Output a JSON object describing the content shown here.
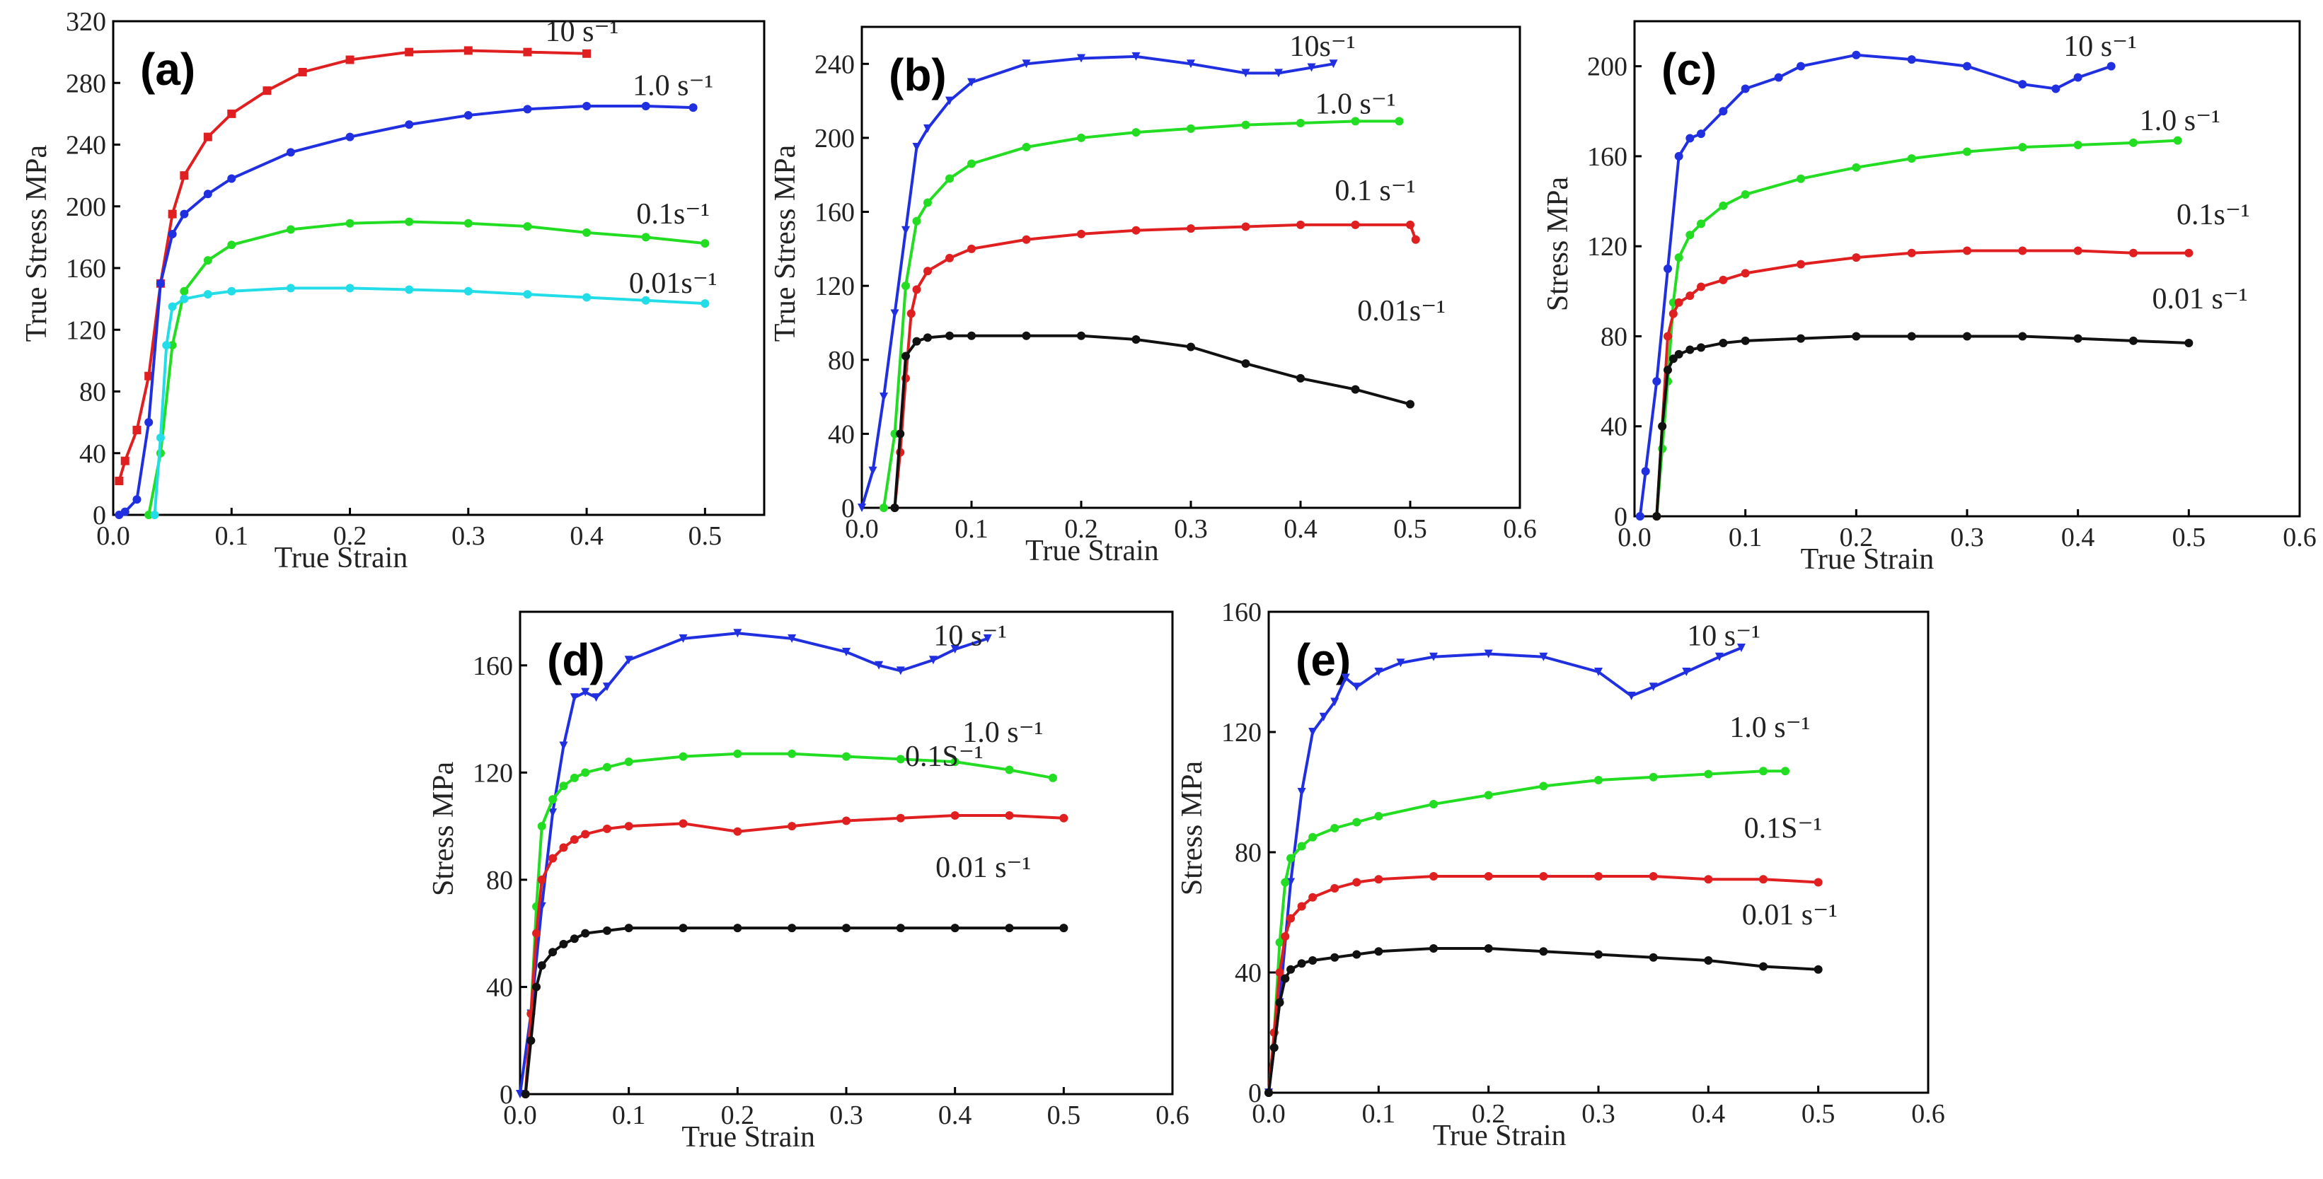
{
  "chart_data": [
    {
      "type": "scatter",
      "panel_label": "(a)",
      "xlabel": "True Strain",
      "ylabel": "True Stress  MPa",
      "xlim": [
        0,
        0.55
      ],
      "ylim": [
        0,
        320
      ],
      "xticks": [
        0.0,
        0.1,
        0.2,
        0.3,
        0.4,
        0.5
      ],
      "xtick_labels": [
        "0.0",
        "0.1",
        "0.2",
        "0.3",
        "0.4",
        "0.5"
      ],
      "yticks": [
        0,
        40,
        80,
        120,
        160,
        200,
        240,
        280,
        320
      ],
      "ytick_labels": [
        "0",
        "40",
        "80",
        "120",
        "160",
        "200",
        "240",
        "280",
        "320"
      ],
      "series": [
        {
          "name": "10 s⁻¹",
          "color": "#e02020",
          "marker": "square",
          "x": [
            0.005,
            0.01,
            0.02,
            0.03,
            0.04,
            0.05,
            0.06,
            0.08,
            0.1,
            0.13,
            0.16,
            0.2,
            0.25,
            0.3,
            0.35,
            0.4
          ],
          "y": [
            22,
            35,
            55,
            90,
            150,
            195,
            220,
            245,
            260,
            275,
            287,
            295,
            300,
            301,
            300,
            299
          ]
        },
        {
          "name": "1.0 s⁻¹",
          "color": "#2030e0",
          "marker": "circle",
          "x": [
            0.005,
            0.01,
            0.02,
            0.03,
            0.04,
            0.05,
            0.06,
            0.08,
            0.1,
            0.15,
            0.2,
            0.25,
            0.3,
            0.35,
            0.4,
            0.45,
            0.49
          ],
          "y": [
            0,
            2,
            10,
            60,
            150,
            182,
            195,
            208,
            218,
            235,
            245,
            253,
            259,
            263,
            265,
            265,
            264
          ]
        },
        {
          "name": "0.1s⁻¹",
          "color": "#22dd22",
          "marker": "circle",
          "x": [
            0.03,
            0.04,
            0.05,
            0.06,
            0.08,
            0.1,
            0.15,
            0.2,
            0.25,
            0.3,
            0.35,
            0.4,
            0.45,
            0.5
          ],
          "y": [
            0,
            40,
            110,
            145,
            165,
            175,
            185,
            189,
            190,
            189,
            187,
            183,
            180,
            176
          ]
        },
        {
          "name": "0.01s⁻¹",
          "color": "#22dde8",
          "marker": "circle",
          "x": [
            0.035,
            0.04,
            0.045,
            0.05,
            0.06,
            0.08,
            0.1,
            0.15,
            0.2,
            0.25,
            0.3,
            0.35,
            0.4,
            0.45,
            0.5
          ],
          "y": [
            0,
            50,
            110,
            135,
            140,
            143,
            145,
            147,
            147,
            146,
            145,
            143,
            141,
            139,
            137
          ]
        }
      ]
    },
    {
      "type": "scatter",
      "panel_label": "(b)",
      "xlabel": "True Strain",
      "ylabel": "True Stress  MPa",
      "xlim": [
        0,
        0.6
      ],
      "ylim": [
        0,
        260
      ],
      "xticks": [
        0.0,
        0.1,
        0.2,
        0.3,
        0.4,
        0.5,
        0.6
      ],
      "xtick_labels": [
        "0.0",
        "0.1",
        "0.2",
        "0.3",
        "0.4",
        "0.5",
        "0.6"
      ],
      "yticks": [
        0,
        40,
        80,
        120,
        160,
        200,
        240
      ],
      "ytick_labels": [
        "0",
        "40",
        "80",
        "120",
        "160",
        "200",
        "240"
      ],
      "series": [
        {
          "name": "10s⁻¹",
          "color": "#2030e0",
          "marker": "triangle-down",
          "x": [
            0.0,
            0.01,
            0.02,
            0.03,
            0.04,
            0.05,
            0.06,
            0.08,
            0.1,
            0.15,
            0.2,
            0.25,
            0.3,
            0.35,
            0.38,
            0.41,
            0.43
          ],
          "y": [
            0,
            20,
            60,
            105,
            150,
            195,
            205,
            220,
            230,
            240,
            243,
            244,
            240,
            235,
            235,
            238,
            240
          ]
        },
        {
          "name": "1.0 s⁻¹",
          "color": "#22dd22",
          "marker": "circle",
          "x": [
            0.02,
            0.03,
            0.04,
            0.05,
            0.06,
            0.08,
            0.1,
            0.15,
            0.2,
            0.25,
            0.3,
            0.35,
            0.4,
            0.45,
            0.49
          ],
          "y": [
            0,
            40,
            120,
            155,
            165,
            178,
            186,
            195,
            200,
            203,
            205,
            207,
            208,
            209,
            209
          ]
        },
        {
          "name": "0.1 s⁻¹",
          "color": "#e02020",
          "marker": "circle",
          "x": [
            0.03,
            0.035,
            0.04,
            0.045,
            0.05,
            0.06,
            0.08,
            0.1,
            0.15,
            0.2,
            0.25,
            0.3,
            0.35,
            0.4,
            0.45,
            0.5,
            0.505
          ],
          "y": [
            0,
            30,
            70,
            105,
            118,
            128,
            135,
            140,
            145,
            148,
            150,
            151,
            152,
            153,
            153,
            153,
            145
          ]
        },
        {
          "name": "0.01s⁻¹",
          "color": "#111111",
          "marker": "circle",
          "x": [
            0.03,
            0.035,
            0.04,
            0.05,
            0.06,
            0.08,
            0.1,
            0.15,
            0.2,
            0.25,
            0.3,
            0.35,
            0.4,
            0.45,
            0.5
          ],
          "y": [
            0,
            40,
            82,
            90,
            92,
            93,
            93,
            93,
            93,
            91,
            87,
            78,
            70,
            64,
            56
          ]
        }
      ]
    },
    {
      "type": "scatter",
      "panel_label": "(c)",
      "xlabel": "True Strain",
      "ylabel": "Stress  MPa",
      "xlim": [
        0,
        0.6
      ],
      "ylim": [
        0,
        220
      ],
      "xticks": [
        0.0,
        0.1,
        0.2,
        0.3,
        0.4,
        0.5,
        0.6
      ],
      "xtick_labels": [
        "0.0",
        "0.1",
        "0.2",
        "0.3",
        "0.4",
        "0.5",
        "0.6"
      ],
      "yticks": [
        0,
        40,
        80,
        120,
        160,
        200
      ],
      "ytick_labels": [
        "0",
        "40",
        "80",
        "120",
        "160",
        "200"
      ],
      "series": [
        {
          "name": "10 s⁻¹",
          "color": "#2030e0",
          "marker": "circle",
          "x": [
            0.005,
            0.01,
            0.02,
            0.03,
            0.04,
            0.05,
            0.06,
            0.08,
            0.1,
            0.13,
            0.15,
            0.2,
            0.25,
            0.3,
            0.35,
            0.38,
            0.4,
            0.43
          ],
          "y": [
            0,
            20,
            60,
            110,
            160,
            168,
            170,
            180,
            190,
            195,
            200,
            205,
            203,
            200,
            192,
            190,
            195,
            200
          ]
        },
        {
          "name": "1.0 s⁻¹",
          "color": "#22dd22",
          "marker": "circle",
          "x": [
            0.02,
            0.025,
            0.03,
            0.035,
            0.04,
            0.05,
            0.06,
            0.08,
            0.1,
            0.15,
            0.2,
            0.25,
            0.3,
            0.35,
            0.4,
            0.45,
            0.49
          ],
          "y": [
            0,
            30,
            60,
            95,
            115,
            125,
            130,
            138,
            143,
            150,
            155,
            159,
            162,
            164,
            165,
            166,
            167
          ]
        },
        {
          "name": "0.1s⁻¹",
          "color": "#e02020",
          "marker": "circle",
          "x": [
            0.02,
            0.025,
            0.03,
            0.035,
            0.04,
            0.05,
            0.06,
            0.08,
            0.1,
            0.15,
            0.2,
            0.25,
            0.3,
            0.35,
            0.4,
            0.45,
            0.5
          ],
          "y": [
            0,
            40,
            80,
            90,
            95,
            98,
            102,
            105,
            108,
            112,
            115,
            117,
            118,
            118,
            118,
            117,
            117
          ]
        },
        {
          "name": "0.01 s⁻¹",
          "color": "#111111",
          "marker": "circle",
          "x": [
            0.02,
            0.025,
            0.03,
            0.035,
            0.04,
            0.05,
            0.06,
            0.08,
            0.1,
            0.15,
            0.2,
            0.25,
            0.3,
            0.35,
            0.4,
            0.45,
            0.5
          ],
          "y": [
            0,
            40,
            65,
            70,
            72,
            74,
            75,
            77,
            78,
            79,
            80,
            80,
            80,
            80,
            79,
            78,
            77
          ]
        }
      ]
    },
    {
      "type": "scatter",
      "panel_label": "(d)",
      "xlabel": "True Strain",
      "ylabel": "Stress  MPa",
      "xlim": [
        0,
        0.6
      ],
      "ylim": [
        0,
        180
      ],
      "xticks": [
        0.0,
        0.1,
        0.2,
        0.3,
        0.4,
        0.5,
        0.6
      ],
      "xtick_labels": [
        "0.0",
        "0.1",
        "0.2",
        "0.3",
        "0.4",
        "0.5",
        "0.6"
      ],
      "yticks": [
        0,
        40,
        80,
        120,
        160
      ],
      "ytick_labels": [
        "0",
        "40",
        "80",
        "120",
        "160"
      ],
      "series": [
        {
          "name": "10 s⁻¹",
          "color": "#2030e0",
          "marker": "triangle-down",
          "x": [
            0.0,
            0.01,
            0.02,
            0.03,
            0.04,
            0.05,
            0.06,
            0.07,
            0.08,
            0.1,
            0.15,
            0.2,
            0.25,
            0.3,
            0.33,
            0.35,
            0.38,
            0.4,
            0.43
          ],
          "y": [
            0,
            30,
            70,
            105,
            130,
            148,
            150,
            148,
            152,
            162,
            170,
            172,
            170,
            165,
            160,
            158,
            162,
            166,
            170
          ]
        },
        {
          "name": "1.0 s⁻¹",
          "color": "#22dd22",
          "marker": "circle",
          "x": [
            0.005,
            0.01,
            0.015,
            0.02,
            0.03,
            0.04,
            0.05,
            0.06,
            0.08,
            0.1,
            0.15,
            0.2,
            0.25,
            0.3,
            0.35,
            0.4,
            0.45,
            0.49
          ],
          "y": [
            0,
            30,
            70,
            100,
            110,
            115,
            118,
            120,
            122,
            124,
            126,
            127,
            127,
            126,
            125,
            124,
            121,
            118
          ]
        },
        {
          "name": "0.1S⁻¹",
          "color": "#e02020",
          "marker": "circle",
          "x": [
            0.005,
            0.01,
            0.015,
            0.02,
            0.03,
            0.04,
            0.05,
            0.06,
            0.08,
            0.1,
            0.15,
            0.2,
            0.25,
            0.3,
            0.35,
            0.4,
            0.45,
            0.5
          ],
          "y": [
            0,
            30,
            60,
            80,
            88,
            92,
            95,
            97,
            99,
            100,
            101,
            98,
            100,
            102,
            103,
            104,
            104,
            103
          ]
        },
        {
          "name": "0.01 s⁻¹",
          "color": "#111111",
          "marker": "circle",
          "x": [
            0.005,
            0.01,
            0.015,
            0.02,
            0.03,
            0.04,
            0.05,
            0.06,
            0.08,
            0.1,
            0.15,
            0.2,
            0.25,
            0.3,
            0.35,
            0.4,
            0.45,
            0.5
          ],
          "y": [
            0,
            20,
            40,
            48,
            53,
            56,
            58,
            60,
            61,
            62,
            62,
            62,
            62,
            62,
            62,
            62,
            62,
            62
          ]
        }
      ]
    },
    {
      "type": "scatter",
      "panel_label": "(e)",
      "xlabel": "True Strain",
      "ylabel": "Stress  MPa",
      "xlim": [
        0,
        0.6
      ],
      "ylim": [
        0,
        160
      ],
      "xticks": [
        0.0,
        0.1,
        0.2,
        0.3,
        0.4,
        0.5,
        0.6
      ],
      "xtick_labels": [
        "0.0",
        "0.1",
        "0.2",
        "0.3",
        "0.4",
        "0.5",
        "0.6"
      ],
      "yticks": [
        0,
        40,
        80,
        120,
        160
      ],
      "ytick_labels": [
        "0",
        "40",
        "80",
        "120",
        "160"
      ],
      "series": [
        {
          "name": "10 s⁻¹",
          "color": "#2030e0",
          "marker": "triangle-down",
          "x": [
            0.0,
            0.01,
            0.02,
            0.03,
            0.04,
            0.05,
            0.06,
            0.07,
            0.08,
            0.1,
            0.12,
            0.15,
            0.2,
            0.25,
            0.3,
            0.33,
            0.35,
            0.38,
            0.41,
            0.43
          ],
          "y": [
            0,
            30,
            70,
            100,
            120,
            125,
            130,
            138,
            135,
            140,
            143,
            145,
            146,
            145,
            140,
            132,
            135,
            140,
            145,
            148
          ]
        },
        {
          "name": "1.0 s⁻¹",
          "color": "#22dd22",
          "marker": "circle",
          "x": [
            0.0,
            0.005,
            0.01,
            0.015,
            0.02,
            0.03,
            0.04,
            0.06,
            0.08,
            0.1,
            0.15,
            0.2,
            0.25,
            0.3,
            0.35,
            0.4,
            0.45,
            0.47
          ],
          "y": [
            0,
            20,
            50,
            70,
            78,
            82,
            85,
            88,
            90,
            92,
            96,
            99,
            102,
            104,
            105,
            106,
            107,
            107
          ]
        },
        {
          "name": "0.1S⁻¹",
          "color": "#e02020",
          "marker": "circle",
          "x": [
            0.0,
            0.005,
            0.01,
            0.015,
            0.02,
            0.03,
            0.04,
            0.06,
            0.08,
            0.1,
            0.15,
            0.2,
            0.25,
            0.3,
            0.35,
            0.4,
            0.45,
            0.5
          ],
          "y": [
            0,
            20,
            40,
            52,
            58,
            62,
            65,
            68,
            70,
            71,
            72,
            72,
            72,
            72,
            72,
            71,
            71,
            70
          ]
        },
        {
          "name": "0.01 s⁻¹",
          "color": "#111111",
          "marker": "circle",
          "x": [
            0.0,
            0.005,
            0.01,
            0.015,
            0.02,
            0.03,
            0.04,
            0.06,
            0.08,
            0.1,
            0.15,
            0.2,
            0.25,
            0.3,
            0.35,
            0.4,
            0.45,
            0.5
          ],
          "y": [
            0,
            15,
            30,
            38,
            41,
            43,
            44,
            45,
            46,
            47,
            48,
            48,
            47,
            46,
            45,
            44,
            42,
            41
          ]
        }
      ]
    }
  ]
}
